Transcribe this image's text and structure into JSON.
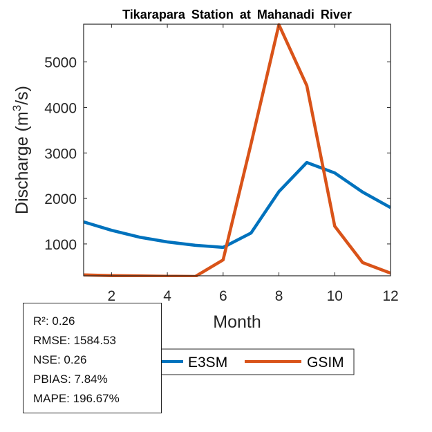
{
  "chart_data": {
    "type": "line",
    "title": "Tikarapara  Station at  Mahanadi  River",
    "xlabel": "Month",
    "ylabel": "Discharge (m³/s)",
    "ylabel_parts": {
      "base": "Discharge (m",
      "sup": "3",
      "tail": "/s)"
    },
    "x": [
      1,
      2,
      3,
      4,
      5,
      6,
      7,
      8,
      9,
      10,
      11,
      12
    ],
    "xlim": [
      1,
      12
    ],
    "ylim": [
      300,
      5830
    ],
    "xticks": [
      2,
      4,
      6,
      8,
      10,
      12
    ],
    "yticks": [
      1000,
      2000,
      3000,
      4000,
      5000
    ],
    "grid": false,
    "legend_position": "bottom-center",
    "series": [
      {
        "name": "E3SM",
        "color": "#0072BD",
        "values": [
          1485,
          1300,
          1150,
          1045,
          970,
          925,
          1240,
          2150,
          2790,
          2560,
          2140,
          1800
        ]
      },
      {
        "name": "GSIM",
        "color": "#D95319",
        "values": [
          320,
          305,
          295,
          290,
          285,
          650,
          3200,
          5820,
          4480,
          1390,
          590,
          360
        ]
      }
    ]
  },
  "stats": [
    "R²: 0.26",
    "RMSE: 1584.53",
    "NSE: 0.26",
    "PBIAS: 7.84%",
    "MAPE: 196.67%"
  ]
}
